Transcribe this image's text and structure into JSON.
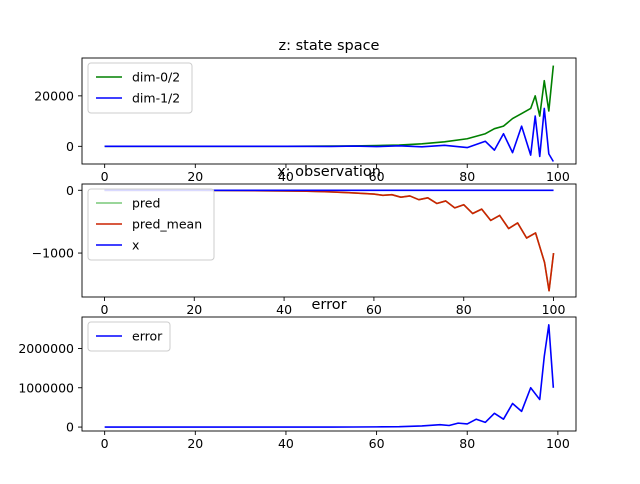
{
  "chart_data": [
    {
      "type": "line",
      "title": "z: state space",
      "xlabel": "",
      "ylabel": "",
      "xlim": [
        -5,
        104
      ],
      "ylim": [
        -7000,
        35000
      ],
      "xticks": [
        0,
        20,
        40,
        60,
        80,
        100
      ],
      "xtick_labels": [
        "0",
        "20",
        "40",
        "60",
        "80",
        "100"
      ],
      "yticks": [
        0,
        20000
      ],
      "ytick_labels": [
        "0",
        "20000"
      ],
      "legend_position": "upper-left",
      "series": [
        {
          "name": "dim-0/2",
          "color": "#008000",
          "x": [
            0,
            10,
            20,
            30,
            40,
            50,
            55,
            60,
            65,
            70,
            75,
            80,
            84,
            86,
            88,
            90,
            92,
            94,
            95,
            96,
            97,
            98,
            99
          ],
          "y": [
            0,
            0,
            0,
            0,
            0,
            100,
            150,
            300,
            500,
            1000,
            1800,
            3000,
            5000,
            7000,
            8000,
            11000,
            13000,
            15000,
            20000,
            12000,
            26000,
            14000,
            32000
          ]
        },
        {
          "name": "dim-1/2",
          "color": "#0000ff",
          "x": [
            0,
            10,
            20,
            30,
            40,
            50,
            55,
            60,
            65,
            70,
            75,
            80,
            84,
            86,
            88,
            90,
            92,
            94,
            95,
            96,
            97,
            98,
            99
          ],
          "y": [
            0,
            0,
            0,
            0,
            0,
            -50,
            100,
            -100,
            200,
            -200,
            400,
            -500,
            2000,
            -1500,
            5000,
            -2500,
            8000,
            -3500,
            12000,
            -4000,
            15000,
            -3000,
            -6000
          ]
        }
      ]
    },
    {
      "type": "line",
      "title": "x: observation",
      "xlabel": "",
      "ylabel": "",
      "xlim": [
        -5,
        105
      ],
      "ylim": [
        -1700,
        100
      ],
      "xticks": [
        0,
        20,
        40,
        60,
        80,
        100
      ],
      "xtick_labels": [
        "0",
        "20",
        "40",
        "60",
        "80",
        "100"
      ],
      "yticks": [
        0,
        -1000
      ],
      "ytick_labels": [
        "0",
        "−1000"
      ],
      "legend_position": "upper-left",
      "series": [
        {
          "name": "pred",
          "color": "#78c878",
          "x": [
            0,
            10,
            20,
            30,
            40,
            45,
            50,
            55,
            60,
            62,
            64,
            66,
            68,
            70,
            72,
            74,
            76,
            78,
            80,
            82,
            84,
            86,
            88,
            90,
            92,
            94,
            96,
            98,
            99,
            100
          ],
          "y": [
            0,
            0,
            0,
            -5,
            -10,
            -15,
            -25,
            -40,
            -60,
            -80,
            -70,
            -110,
            -90,
            -150,
            -120,
            -210,
            -170,
            -280,
            -230,
            -370,
            -300,
            -480,
            -400,
            -610,
            -520,
            -760,
            -680,
            -1150,
            -1600,
            -1000
          ]
        },
        {
          "name": "pred_mean",
          "color": "#cc2200",
          "x": [
            0,
            10,
            20,
            30,
            40,
            45,
            50,
            55,
            60,
            62,
            64,
            66,
            68,
            70,
            72,
            74,
            76,
            78,
            80,
            82,
            84,
            86,
            88,
            90,
            92,
            94,
            96,
            98,
            99,
            100
          ],
          "y": [
            0,
            0,
            0,
            -5,
            -10,
            -15,
            -25,
            -40,
            -60,
            -80,
            -70,
            -110,
            -90,
            -150,
            -120,
            -210,
            -170,
            -280,
            -230,
            -370,
            -300,
            -480,
            -400,
            -610,
            -520,
            -760,
            -680,
            -1150,
            -1600,
            -1000
          ]
        },
        {
          "name": "x",
          "color": "#0000ff",
          "x": [
            0,
            100
          ],
          "y": [
            0,
            0
          ]
        }
      ]
    },
    {
      "type": "line",
      "title": "error",
      "xlabel": "",
      "ylabel": "",
      "xlim": [
        -5,
        104
      ],
      "ylim": [
        -100000,
        2800000
      ],
      "xticks": [
        0,
        20,
        40,
        60,
        80,
        100
      ],
      "xtick_labels": [
        "0",
        "20",
        "40",
        "60",
        "80",
        "100"
      ],
      "yticks": [
        0,
        1000000,
        2000000
      ],
      "ytick_labels": [
        "0",
        "1000000",
        "2000000"
      ],
      "legend_position": "upper-left",
      "series": [
        {
          "name": "error",
          "color": "#0000ff",
          "x": [
            0,
            10,
            20,
            30,
            40,
            50,
            55,
            60,
            65,
            70,
            74,
            76,
            78,
            80,
            82,
            84,
            86,
            88,
            90,
            92,
            94,
            96,
            97,
            98,
            99
          ],
          "y": [
            0,
            0,
            0,
            0,
            0,
            0,
            2000,
            5000,
            10000,
            30000,
            60000,
            40000,
            100000,
            80000,
            200000,
            120000,
            350000,
            200000,
            600000,
            400000,
            1000000,
            700000,
            1800000,
            2600000,
            1000000
          ]
        }
      ]
    }
  ]
}
